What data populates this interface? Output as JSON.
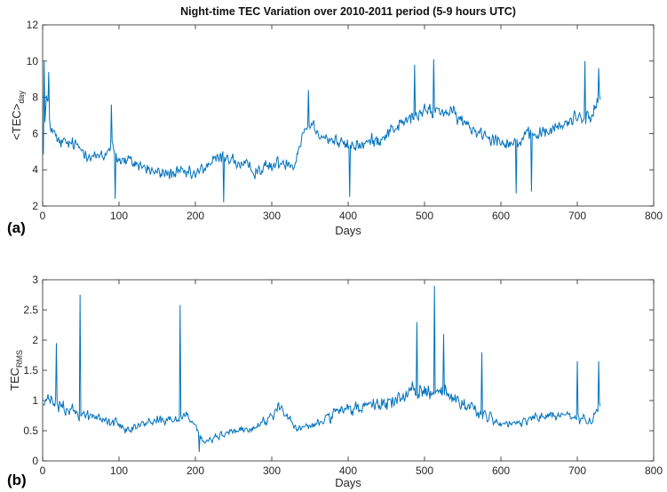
{
  "chart_data": [
    {
      "type": "line",
      "panel_label": "(a)",
      "title": "Night-time TEC Variation over 2010-2011 period (5-9 hours UTC)",
      "xlabel": "Days",
      "ylabel_main": "<TEC>",
      "ylabel_sub": "day",
      "xlim": [
        0,
        800
      ],
      "ylim": [
        2,
        12
      ],
      "xticks": [
        "0",
        "100",
        "200",
        "300",
        "400",
        "500",
        "600",
        "700",
        "800"
      ],
      "yticks": [
        "2",
        "4",
        "6",
        "8",
        "10",
        "12"
      ],
      "line_color": "#0072BD",
      "x_start": 1,
      "x_end": 730,
      "envelope": {
        "x": [
          0,
          5,
          10,
          20,
          40,
          60,
          80,
          90,
          100,
          120,
          150,
          180,
          200,
          220,
          240,
          260,
          280,
          300,
          320,
          330,
          340,
          350,
          370,
          400,
          420,
          440,
          460,
          480,
          500,
          520,
          540,
          560,
          580,
          600,
          620,
          640,
          660,
          680,
          700,
          720,
          730
        ],
        "y": [
          4.5,
          8.0,
          6.5,
          5.5,
          5.4,
          4.9,
          4.6,
          5.5,
          4.5,
          4.4,
          3.8,
          3.8,
          3.7,
          4.4,
          4.8,
          4.2,
          4.0,
          4.2,
          4.5,
          4.3,
          6.0,
          6.6,
          5.8,
          5.3,
          5.4,
          5.7,
          6.3,
          6.8,
          7.2,
          7.3,
          7.0,
          6.3,
          6.0,
          5.6,
          5.5,
          5.9,
          6.1,
          6.4,
          7.0,
          6.9,
          8.2
        ]
      },
      "noise_amplitude": 0.85,
      "spikes": [
        [
          2,
          10.0
        ],
        [
          8,
          9.4
        ],
        [
          90,
          7.6
        ],
        [
          95,
          2.4
        ],
        [
          237,
          2.2
        ],
        [
          348,
          8.4
        ],
        [
          402,
          2.5
        ],
        [
          487,
          9.8
        ],
        [
          512,
          10.1
        ],
        [
          620,
          2.7
        ],
        [
          640,
          2.8
        ],
        [
          710,
          10.0
        ],
        [
          728,
          9.6
        ]
      ]
    },
    {
      "type": "line",
      "panel_label": "(b)",
      "xlabel": "Days",
      "ylabel_main": "TEC",
      "ylabel_sub": "RMS",
      "xlim": [
        0,
        800
      ],
      "ylim": [
        0,
        3
      ],
      "xticks": [
        "0",
        "100",
        "200",
        "300",
        "400",
        "500",
        "600",
        "700",
        "800"
      ],
      "yticks": [
        "0",
        "0.5",
        "1",
        "1.5",
        "2",
        "2.5",
        "3"
      ],
      "line_color": "#0072BD",
      "x_start": 1,
      "x_end": 730,
      "envelope": {
        "x": [
          0,
          10,
          30,
          60,
          90,
          110,
          130,
          150,
          170,
          190,
          200,
          210,
          230,
          250,
          270,
          290,
          310,
          330,
          350,
          370,
          400,
          430,
          460,
          480,
          500,
          520,
          540,
          560,
          580,
          600,
          620,
          640,
          660,
          680,
          700,
          720,
          730
        ],
        "y": [
          0.95,
          1.0,
          0.85,
          0.75,
          0.65,
          0.55,
          0.6,
          0.7,
          0.65,
          0.8,
          0.6,
          0.3,
          0.4,
          0.5,
          0.5,
          0.65,
          0.9,
          0.55,
          0.55,
          0.7,
          0.85,
          0.9,
          1.0,
          1.1,
          1.15,
          1.2,
          1.0,
          0.9,
          0.75,
          0.6,
          0.6,
          0.7,
          0.75,
          0.75,
          0.7,
          0.65,
          0.9
        ]
      },
      "noise_amplitude": 0.28,
      "spikes": [
        [
          18,
          1.95
        ],
        [
          49,
          2.75
        ],
        [
          180,
          2.58
        ],
        [
          490,
          2.3
        ],
        [
          513,
          2.9
        ],
        [
          525,
          2.1
        ],
        [
          575,
          1.8
        ],
        [
          700,
          1.65
        ],
        [
          728,
          1.65
        ],
        [
          205,
          0.15
        ]
      ]
    }
  ]
}
